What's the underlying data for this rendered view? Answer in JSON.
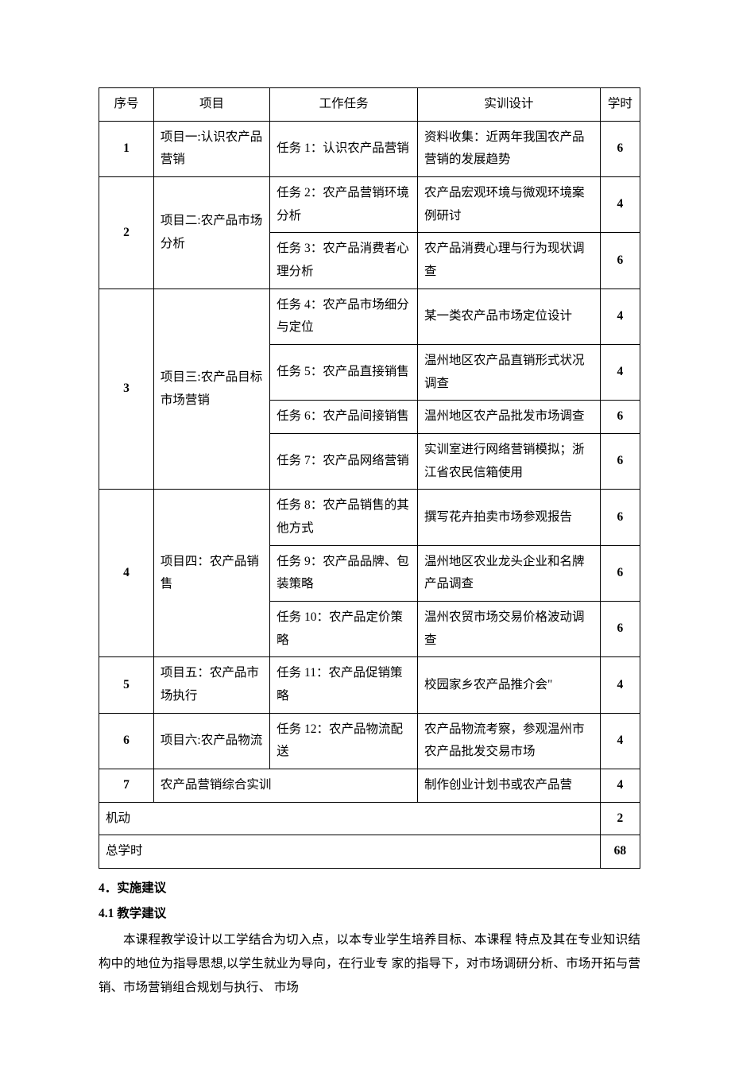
{
  "table": {
    "headers": {
      "seq": "序号",
      "project": "项目",
      "task": "工作任务",
      "design": "实训设计",
      "hours": "学时"
    },
    "rows": [
      {
        "seq": "1",
        "project": "项目一:认识农产品营销",
        "project_rowspan": 1,
        "task": "任务 1：认识农产品营销",
        "design": "资料收集：近两年我国农产品营销的发展趋势",
        "hours": "6"
      },
      {
        "seq": "2",
        "seq_rowspan": 2,
        "project": "项目二:农产品市场分析",
        "project_rowspan": 2,
        "task": "任务 2：农产品营销环境分析",
        "design": "农产品宏观环境与微观环境案例研讨",
        "hours": "4"
      },
      {
        "task": "任务 3：农产品消费者心理分析",
        "design": "农产品消费心理与行为现状调查",
        "hours": "6"
      },
      {
        "seq": "3",
        "seq_rowspan": 4,
        "project": "项目三:农产品目标市场营销",
        "project_rowspan": 4,
        "task": "任务 4：农产品市场细分与定位",
        "design": "某一类农产品市场定位设计",
        "hours": "4"
      },
      {
        "task": "任务 5：农产品直接销售",
        "design": "温州地区农产品直销形式状况调查",
        "hours": "4"
      },
      {
        "task": "任务 6：农产品间接销售",
        "design": "温州地区农产品批发市场调查",
        "hours": "6"
      },
      {
        "task": "任务 7：农产品网络营销",
        "design": "实训室进行网络营销模拟；浙江省农民信箱使用",
        "hours": "6"
      },
      {
        "seq": "4",
        "seq_rowspan": 3,
        "project": "项目四：农产品销售",
        "project_rowspan": 3,
        "task": "任务 8：农产品销售的其他方式",
        "design": "撰写花卉拍卖市场参观报告",
        "hours": "6"
      },
      {
        "task": "任务 9：农产品品牌、包装策略",
        "design": "温州地区农业龙头企业和名牌产品调查",
        "hours": "6"
      },
      {
        "task": "任务 10：农产品定价策略",
        "design": "温州农贸市场交易价格波动调查",
        "hours": "6"
      },
      {
        "seq": "5",
        "project": "项目五：农产品市场执行",
        "project_rowspan": 1,
        "task": "任务 11：农产品促销策略",
        "design": "校园家乡农产品推介会\"",
        "hours": "4"
      },
      {
        "seq": "6",
        "project": "项目六:农产品物流",
        "project_rowspan": 1,
        "task": "任务 12：农产品物流配送",
        "design": "农产品物流考察，参观温州市农产品批发交易市场",
        "hours": "4"
      },
      {
        "seq": "7",
        "project": "农产品营销综合实训",
        "project_colspan": 2,
        "design": "制作创业计划书或农产品营",
        "hours": "4"
      }
    ],
    "footer": {
      "flexible_label": "机动",
      "flexible_hours": "2",
      "total_label": "总学时",
      "total_hours": "68"
    }
  },
  "paragraphs": {
    "line1": "4．实施建议",
    "line2": "4.1 教学建议",
    "body": "本课程教学设计以工学结合为切入点，以本专业学生培养目标、本课程 特点及其在专业知识结构中的地位为指导思想,以学生就业为导向，在行业专 家的指导下，对市场调研分析、市场开拓与营销、市场营销组合规划与执行、 市场"
  }
}
